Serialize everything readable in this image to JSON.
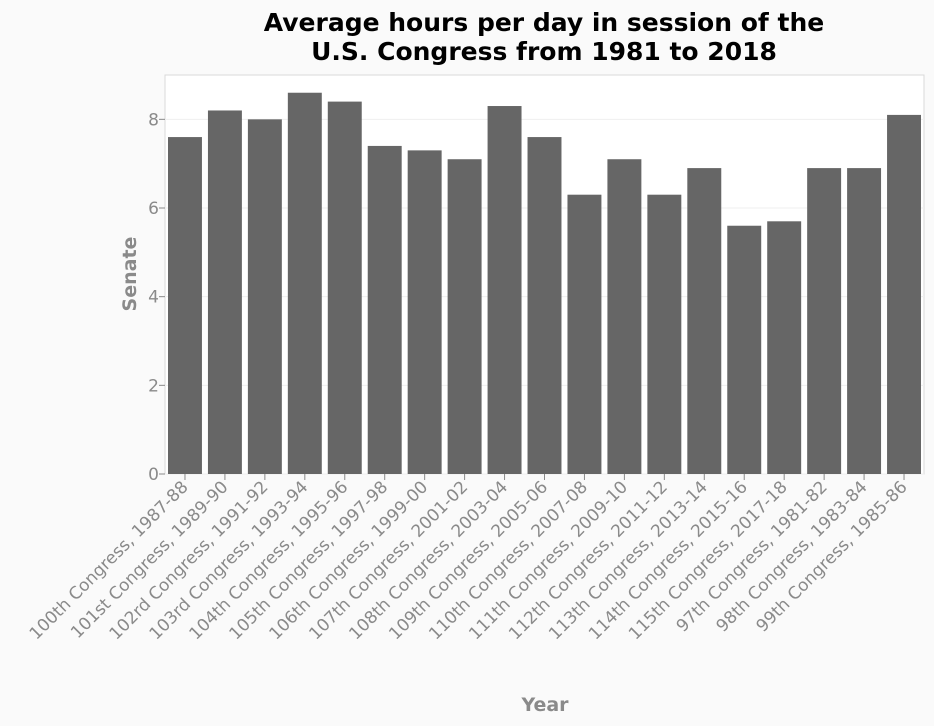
{
  "chart_data": {
    "type": "bar",
    "title_lines": [
      "Average hours per day in session of the",
      "U.S. Congress from 1981 to 2018"
    ],
    "xlabel": "Year",
    "ylabel": "Senate",
    "ylim": [
      0,
      9
    ],
    "yticks": [
      0,
      2,
      4,
      6,
      8
    ],
    "grid": true,
    "bar_color": "#666666",
    "categories": [
      "100th Congress, 1987-88",
      "101st Congress, 1989-90",
      "102rd Congress, 1991-92",
      "103rd Congress, 1993-94",
      "104th Congress, 1995-96",
      "105th Congress, 1997-98",
      "106th Congress, 1999-00",
      "107th Congress, 2001-02",
      "108th Congress, 2003-04",
      "109th Congress, 2005-06",
      "110th Congress, 2007-08",
      "111th Congress, 2009-10",
      "112th Congress, 2011-12",
      "113th Congress, 2013-14",
      "114th Congress, 2015-16",
      "115th Congress, 2017-18",
      "97th Congress, 1981-82",
      "98th Congress, 1983-84",
      "99th Congress, 1985-86"
    ],
    "values": [
      7.6,
      8.2,
      8.0,
      8.6,
      8.4,
      7.4,
      7.3,
      7.1,
      8.3,
      7.6,
      6.3,
      7.1,
      6.3,
      6.9,
      5.6,
      5.7,
      6.9,
      6.9,
      8.1
    ]
  }
}
